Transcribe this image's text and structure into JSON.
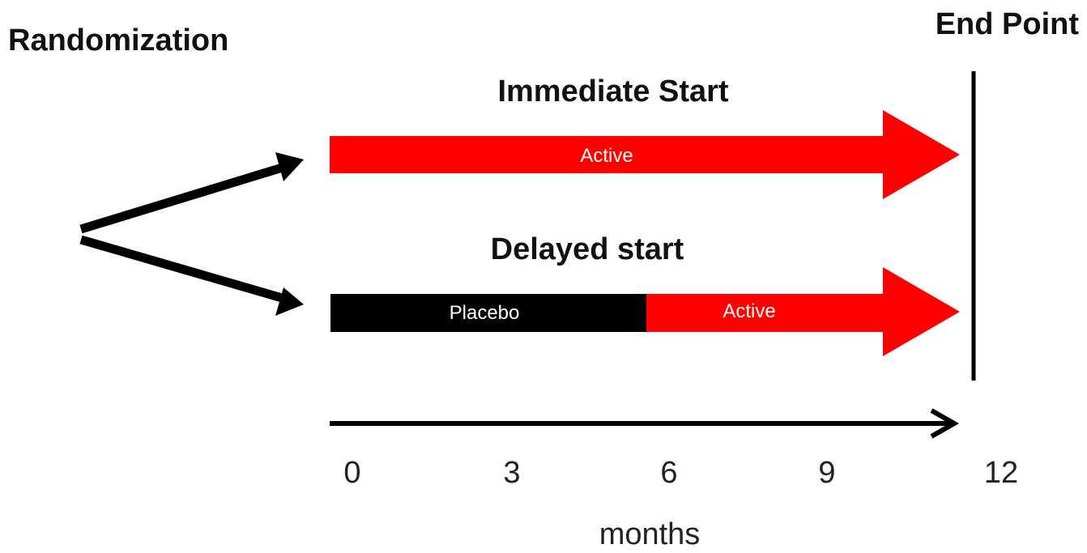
{
  "labels": {
    "randomization": "Randomization",
    "end_point": "End Point",
    "immediate_start": "Immediate Start",
    "delayed_start": "Delayed start",
    "x_unit": "months"
  },
  "arms": [
    {
      "title": "Immediate Start",
      "segments": [
        {
          "label": "Active",
          "color": "#ff0000",
          "from_month": 0,
          "to_month": 12
        }
      ]
    },
    {
      "title": "Delayed start",
      "segments": [
        {
          "label": "Placebo",
          "color": "#000000",
          "from_month": 0,
          "to_month": 6
        },
        {
          "label": "Active",
          "color": "#ff0000",
          "from_month": 6,
          "to_month": 12
        }
      ]
    }
  ],
  "axis": {
    "ticks": [
      "0",
      "3",
      "6",
      "9",
      "12"
    ],
    "unit": "months"
  },
  "colors": {
    "active": "#ff0000",
    "placebo": "#000000",
    "line": "#000000"
  }
}
